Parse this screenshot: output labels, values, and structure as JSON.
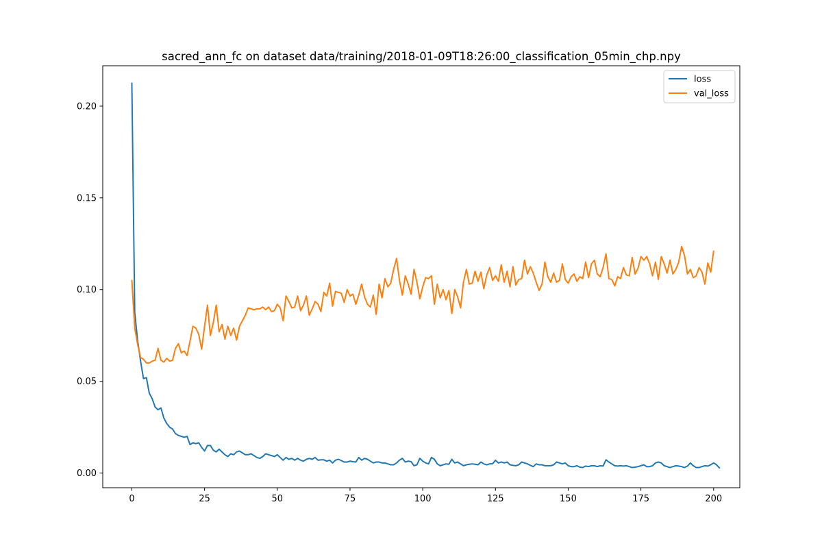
{
  "chart_data": {
    "type": "line",
    "title": "sacred_ann_fc on dataset data/training/2018-01-09T18:26:00_classification_05min_chp.npy",
    "xlabel": "",
    "ylabel": "",
    "xlim": [
      -10,
      209
    ],
    "ylim": [
      -0.008,
      0.222
    ],
    "xticks": [
      0,
      25,
      50,
      75,
      100,
      125,
      150,
      175,
      200
    ],
    "xtick_labels": [
      "0",
      "25",
      "50",
      "75",
      "100",
      "125",
      "150",
      "175",
      "200"
    ],
    "yticks": [
      0.0,
      0.05,
      0.1,
      0.15,
      0.2
    ],
    "ytick_labels": [
      "0.00",
      "0.05",
      "0.10",
      "0.15",
      "0.20"
    ],
    "grid": false,
    "legend": "top-right",
    "series": [
      {
        "name": "loss",
        "color": "#1f77b4",
        "x_start": 0,
        "x_step": 1,
        "values": [
          0.2125,
          0.0875,
          0.072,
          0.061,
          0.0515,
          0.052,
          0.0435,
          0.0405,
          0.036,
          0.0345,
          0.0355,
          0.03,
          0.027,
          0.025,
          0.024,
          0.0215,
          0.0205,
          0.02,
          0.0195,
          0.02,
          0.0155,
          0.0165,
          0.016,
          0.0165,
          0.014,
          0.012,
          0.015,
          0.015,
          0.0125,
          0.0115,
          0.013,
          0.0115,
          0.01,
          0.009,
          0.0105,
          0.01,
          0.0115,
          0.012,
          0.011,
          0.01,
          0.01,
          0.0105,
          0.0095,
          0.0085,
          0.008,
          0.009,
          0.0105,
          0.01,
          0.0095,
          0.009,
          0.01,
          0.0085,
          0.007,
          0.0085,
          0.0075,
          0.008,
          0.007,
          0.008,
          0.007,
          0.0065,
          0.0075,
          0.008,
          0.0075,
          0.0085,
          0.007,
          0.0072,
          0.0072,
          0.0065,
          0.007,
          0.0055,
          0.007,
          0.0075,
          0.0068,
          0.006,
          0.006,
          0.0065,
          0.0062,
          0.006,
          0.0085,
          0.007,
          0.008,
          0.0075,
          0.0065,
          0.0055,
          0.006,
          0.006,
          0.0055,
          0.0055,
          0.005,
          0.0045,
          0.0045,
          0.0055,
          0.007,
          0.008,
          0.006,
          0.0065,
          0.0062,
          0.004,
          0.0045,
          0.008,
          0.0065,
          0.0055,
          0.005,
          0.0085,
          0.0075,
          0.005,
          0.004,
          0.0045,
          0.005,
          0.0048,
          0.0075,
          0.0055,
          0.006,
          0.005,
          0.004,
          0.0045,
          0.0048,
          0.005,
          0.0048,
          0.0045,
          0.006,
          0.005,
          0.0045,
          0.005,
          0.005,
          0.007,
          0.0055,
          0.006,
          0.0055,
          0.006,
          0.0045,
          0.0042,
          0.004,
          0.0045,
          0.006,
          0.0055,
          0.005,
          0.0042,
          0.0035,
          0.005,
          0.0045,
          0.0045,
          0.004,
          0.004,
          0.004,
          0.0045,
          0.006,
          0.0055,
          0.005,
          0.0055,
          0.004,
          0.0035,
          0.0035,
          0.004,
          0.0032,
          0.003,
          0.0038,
          0.0035,
          0.004,
          0.004,
          0.0035,
          0.004,
          0.0038,
          0.0072,
          0.006,
          0.005,
          0.004,
          0.0038,
          0.004,
          0.0038,
          0.004,
          0.0035,
          0.003,
          0.0032,
          0.0035,
          0.004,
          0.0045,
          0.0035,
          0.0035,
          0.004,
          0.0055,
          0.006,
          0.0055,
          0.004,
          0.0035,
          0.003,
          0.0035,
          0.004,
          0.0038,
          0.0035,
          0.003,
          0.0038,
          0.0055,
          0.004,
          0.003,
          0.003,
          0.0035,
          0.004,
          0.0038,
          0.0045,
          0.0055,
          0.0045,
          0.0028
        ]
      },
      {
        "name": "val_loss",
        "color": "#ff7f0e",
        "x_start": 0,
        "x_step": 1,
        "values": [
          0.105,
          0.079,
          0.07,
          0.063,
          0.062,
          0.06,
          0.06,
          0.061,
          0.0615,
          0.068,
          0.0615,
          0.0605,
          0.0625,
          0.061,
          0.0615,
          0.068,
          0.0705,
          0.0655,
          0.0665,
          0.064,
          0.072,
          0.08,
          0.079,
          0.0755,
          0.0675,
          0.08,
          0.0915,
          0.075,
          0.082,
          0.0915,
          0.077,
          0.081,
          0.073,
          0.08,
          0.075,
          0.079,
          0.0725,
          0.08,
          0.083,
          0.086,
          0.09,
          0.0895,
          0.089,
          0.0895,
          0.0895,
          0.0905,
          0.089,
          0.0905,
          0.088,
          0.0885,
          0.092,
          0.09,
          0.083,
          0.0965,
          0.0935,
          0.09,
          0.0905,
          0.0965,
          0.0885,
          0.0915,
          0.0965,
          0.086,
          0.0895,
          0.0935,
          0.092,
          0.088,
          0.0985,
          0.0965,
          0.1035,
          0.091,
          0.099,
          0.0985,
          0.098,
          0.093,
          0.1,
          0.0965,
          0.0975,
          0.092,
          0.097,
          0.103,
          0.096,
          0.092,
          0.0905,
          0.097,
          0.0865,
          0.103,
          0.0955,
          0.106,
          0.1015,
          0.1035,
          0.111,
          0.117,
          0.105,
          0.097,
          0.1075,
          0.103,
          0.0975,
          0.111,
          0.104,
          0.095,
          0.1015,
          0.1065,
          0.106,
          0.1075,
          0.092,
          0.103,
          0.0955,
          0.1,
          0.0945,
          0.0995,
          0.087,
          0.1,
          0.096,
          0.09,
          0.104,
          0.111,
          0.103,
          0.1035,
          0.11,
          0.1045,
          0.1095,
          0.1005,
          0.108,
          0.112,
          0.105,
          0.1075,
          0.1045,
          0.1135,
          0.104,
          0.11,
          0.1015,
          0.1125,
          0.1025,
          0.1055,
          0.106,
          0.116,
          0.1085,
          0.1125,
          0.109,
          0.104,
          0.0995,
          0.103,
          0.115,
          0.107,
          0.104,
          0.109,
          0.104,
          0.105,
          0.114,
          0.1055,
          0.1035,
          0.107,
          0.1085,
          0.1045,
          0.107,
          0.106,
          0.115,
          0.1065,
          0.114,
          0.116,
          0.1085,
          0.107,
          0.112,
          0.1195,
          0.106,
          0.1055,
          0.102,
          0.107,
          0.106,
          0.112,
          0.108,
          0.1075,
          0.1175,
          0.1085,
          0.1115,
          0.118,
          0.116,
          0.118,
          0.114,
          0.1075,
          0.115,
          0.1055,
          0.118,
          0.114,
          0.109,
          0.116,
          0.1085,
          0.111,
          0.115,
          0.1235,
          0.1185,
          0.1085,
          0.111,
          0.1065,
          0.1075,
          0.112,
          0.1095,
          0.103,
          0.1145,
          0.1095,
          0.121
        ]
      }
    ]
  }
}
